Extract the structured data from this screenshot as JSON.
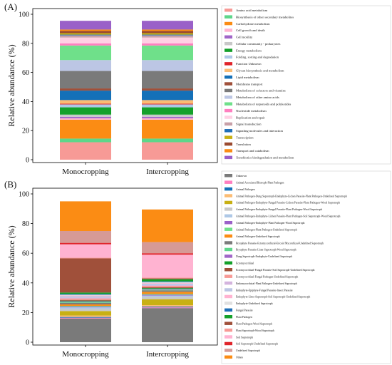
{
  "chart_data": [
    {
      "panel": "(A)",
      "type": "bar",
      "stacked": true,
      "categories": [
        "Monocropping",
        "Intercropping"
      ],
      "ylabel": "Relative abundance (%)",
      "xlabel": "",
      "ylim": [
        0,
        100
      ],
      "yticks": [
        0,
        20,
        40,
        60,
        80,
        100
      ],
      "legend_position": "right",
      "series": [
        {
          "name": "Amino acid metabolism",
          "color": "#f79a96",
          "values": [
            12.0,
            12.0
          ]
        },
        {
          "name": "Biosynthesis of other secondary metabolites",
          "color": "#5ed68a",
          "values": [
            2.5,
            2.5
          ]
        },
        {
          "name": "Carbohydrate metabolism",
          "color": "#fb8c14",
          "values": [
            13.0,
            13.0
          ]
        },
        {
          "name": "Cell growth and death",
          "color": "#ffb3d1",
          "values": [
            1.0,
            1.0
          ]
        },
        {
          "name": "Cell motility",
          "color": "#a066c8",
          "values": [
            1.0,
            1.0
          ]
        },
        {
          "name": "Cellular community - prokaryotes",
          "color": "#c8c8c8",
          "values": [
            1.5,
            1.5
          ]
        },
        {
          "name": "Energy metabolism",
          "color": "#14a02a",
          "values": [
            5.0,
            5.0
          ]
        },
        {
          "name": "Folding, sorting and degradation",
          "color": "#aec8e6",
          "values": [
            2.0,
            2.0
          ]
        },
        {
          "name": "Function Unknown",
          "color": "#e0242a",
          "values": [
            0.5,
            0.5
          ]
        },
        {
          "name": "Glycan biosynthesis and metabolism",
          "color": "#fbbc74",
          "values": [
            2.5,
            2.5
          ]
        },
        {
          "name": "Lipid metabolism",
          "color": "#1470b8",
          "values": [
            6.5,
            6.5
          ]
        },
        {
          "name": "Membrane transport",
          "color": "#a0503a",
          "values": [
            1.5,
            1.5
          ]
        },
        {
          "name": "Metabolism of cofactors and vitamins",
          "color": "#7a7a7a",
          "values": [
            12.0,
            12.0
          ]
        },
        {
          "name": "Metabolism of other amino acids",
          "color": "#bcc6e4",
          "values": [
            7.5,
            7.5
          ]
        },
        {
          "name": "Metabolism of terpenoids and polyketides",
          "color": "#6fe08a",
          "values": [
            10.0,
            10.0
          ]
        },
        {
          "name": "Nucleotide metabolism",
          "color": "#ff7fc0",
          "values": [
            1.5,
            1.5
          ]
        },
        {
          "name": "Replication and repair",
          "color": "#ffd0e4",
          "values": [
            4.0,
            4.0
          ]
        },
        {
          "name": "Signal transduction",
          "color": "#c8a0a8",
          "values": [
            1.5,
            1.5
          ]
        },
        {
          "name": "Signaling molecules and interaction",
          "color": "#1f6fb8",
          "values": [
            0.5,
            0.5
          ]
        },
        {
          "name": "Transcription",
          "color": "#c8b014",
          "values": [
            1.0,
            1.0
          ]
        },
        {
          "name": "Translation",
          "color": "#9a4a30",
          "values": [
            1.5,
            1.5
          ]
        },
        {
          "name": "Transport and catabolism",
          "color": "#fb8c14",
          "values": [
            1.0,
            1.0
          ]
        },
        {
          "name": "Xenobiotics biodegradation and metabolism",
          "color": "#9a60c8",
          "values": [
            6.0,
            6.0
          ]
        }
      ]
    },
    {
      "panel": "(B)",
      "type": "bar",
      "stacked": true,
      "categories": [
        "Monocropping",
        "Intercropping"
      ],
      "ylabel": "Relative abundance (%)",
      "xlabel": "",
      "ylim": [
        0,
        100
      ],
      "yticks": [
        0,
        20,
        40,
        60,
        80,
        100
      ],
      "legend_position": "right",
      "series": [
        {
          "name": "Unknown",
          "color": "#7a7a7a",
          "values": [
            16.0,
            23.0
          ]
        },
        {
          "name": "Animal Associated Biotroph-Plant Pathogen",
          "color": "#ff7fc0",
          "values": [
            0.5,
            0.5
          ]
        },
        {
          "name": "Animal Pathogen",
          "color": "#1470b8",
          "values": [
            0.5,
            0.5
          ]
        },
        {
          "name": "Animal Pathogen-Dung Saprotroph-Endophyte-Lichen Parasite-Plant Pathogen-Undefined Saprotroph",
          "color": "#fbbc74",
          "values": [
            1.0,
            1.0
          ]
        },
        {
          "name": "Animal Pathogen-Endophyte-Fungal Parasite-Lichen Parasite-Plant Pathogen-Wood Saprotroph",
          "color": "#c8b014",
          "values": [
            3.0,
            4.0
          ]
        },
        {
          "name": "Animal Pathogen-Endophyte-Fungal Parasite-Plant Pathogen-Wood Saprotroph",
          "color": "#c8c8c8",
          "values": [
            1.5,
            1.5
          ]
        },
        {
          "name": "Animal Pathogen-Endophyte-Lichen Parasite-Plant Pathogen-Soil Saprotroph-Wood Saprotroph",
          "color": "#aec8e6",
          "values": [
            1.0,
            1.0
          ]
        },
        {
          "name": "Animal Pathogen-Endophyte-Plant Pathogen-Wood Saprotroph",
          "color": "#9a60c8",
          "values": [
            0.5,
            0.5
          ]
        },
        {
          "name": "Animal Pathogen-Plant Pathogen-Undefined Saprotroph",
          "color": "#6fe08a",
          "values": [
            0.5,
            0.5
          ]
        },
        {
          "name": "Animal Pathogen-Undefined Saprotroph",
          "color": "#fb8c14",
          "values": [
            1.0,
            1.5
          ]
        },
        {
          "name": "Bryophyte Parasite-Ectomycorrhizal-Ericoid Mycorrhizal-Undefined Saprotroph",
          "color": "#7a7a7a",
          "values": [
            1.0,
            1.0
          ]
        },
        {
          "name": "Bryophyte Parasite-Litter Saprotroph-Wood Saprotroph",
          "color": "#5ed68a",
          "values": [
            0.5,
            0.5
          ]
        },
        {
          "name": "Dung Saprotroph-Endophyte-Undefined Saprotroph",
          "color": "#a066c8",
          "values": [
            0.5,
            0.5
          ]
        },
        {
          "name": "Ectomycorrhizal",
          "color": "#14a02a",
          "values": [
            0.5,
            0.5
          ]
        },
        {
          "name": "Ectomycorrhizal-Fungal Parasite-Soil Saprotroph-Undefined Saprotroph",
          "color": "#a0503a",
          "values": [
            0.5,
            0.5
          ]
        },
        {
          "name": "Ectomycorrhizal-Fungal Pathogen-Undefined Saprotroph",
          "color": "#f79a96",
          "values": [
            1.0,
            1.0
          ]
        },
        {
          "name": "Endomycorrhizal-Plant Pathogen-Undefined Saprotroph",
          "color": "#d4b4de",
          "values": [
            0.5,
            0.5
          ]
        },
        {
          "name": "Endophyte-Epiphyte-Fungal Parasite-Insect Parasite",
          "color": "#bcc6e4",
          "values": [
            1.0,
            1.0
          ]
        },
        {
          "name": "Endophyte-Litter Saprotroph-Soil Saprotroph-Undefined Saprotroph",
          "color": "#ffb3d1",
          "values": [
            0.5,
            0.5
          ]
        },
        {
          "name": "Endophyte-Undefined Saprotroph",
          "color": "#e0e0e0",
          "values": [
            0.5,
            0.5
          ]
        },
        {
          "name": "Fungal Parasite",
          "color": "#1f6fb8",
          "values": [
            0.5,
            0.5
          ]
        },
        {
          "name": "Plant Pathogen",
          "color": "#14a02a",
          "values": [
            1.0,
            1.5
          ]
        },
        {
          "name": "Plant Pathogen-Wood Saprotroph",
          "color": "#a0503a",
          "values": [
            23.0,
            0.5
          ]
        },
        {
          "name": "Plant Saprotroph-Wood Saprotroph",
          "color": "#f79a96",
          "values": [
            0.5,
            0.5
          ]
        },
        {
          "name": "Soil Saprotroph",
          "color": "#ffb3d1",
          "values": [
            9.0,
            15.5
          ]
        },
        {
          "name": "Soil Saprotroph-Undefined Saprotroph",
          "color": "#e0242a",
          "values": [
            1.0,
            1.0
          ]
        },
        {
          "name": "Undefined Saprotroph",
          "color": "#d69a96",
          "values": [
            8.0,
            7.5
          ]
        },
        {
          "name": "Others",
          "color": "#fb8c14",
          "values": [
            20.0,
            22.0
          ]
        }
      ]
    }
  ]
}
